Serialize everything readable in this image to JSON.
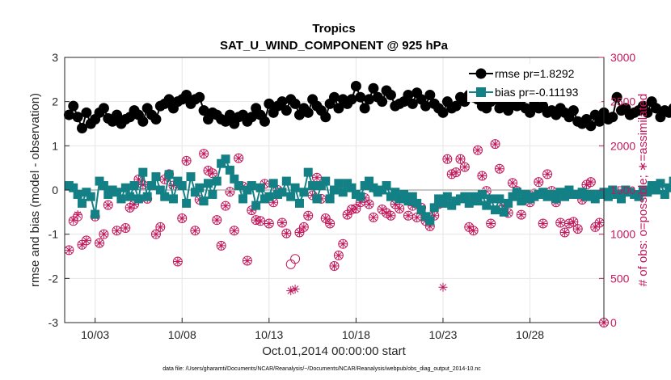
{
  "chart_data": {
    "type": "line",
    "title": "Tropics",
    "subtitle": "SAT_U_WIND_COMPONENT @ 925 hPa",
    "xlabel": "Oct.01,2014 00:00:00 start",
    "ylabel_left": "rmse and bias (model - observation)",
    "ylabel_right": "# of obs: o=possible; ∗=assimilated",
    "footnote": "data file: /Users/gharamti/Documents/NCAR/Reanalysis/~/Documents/NCAR/Reanalysis/webpub/obs_diag_output_2014-10.nc",
    "xlim": [
      1.25,
      32.25
    ],
    "ylim_left": [
      -3,
      3
    ],
    "ylim_right": [
      0,
      3000
    ],
    "x_ticks": [
      3,
      8,
      13,
      18,
      23,
      28
    ],
    "x_tick_labels": [
      "10/03",
      "10/08",
      "10/13",
      "10/18",
      "10/23",
      "10/28"
    ],
    "y_ticks_left": [
      -3,
      -2,
      -1,
      0,
      1,
      2,
      3
    ],
    "y_ticks_right": [
      0,
      500,
      1000,
      1500,
      2000,
      2500,
      3000
    ],
    "x_start": 1.5,
    "x_step": 0.25,
    "colors": {
      "rmse": "#000000",
      "bias": "#138086",
      "obs": "#c2185b",
      "zero_line": "#b3b3b3"
    },
    "legend": {
      "location": "top-right",
      "rmse_label": "rmse pr=1.8292",
      "bias_label": "bias pr=-0.11193"
    },
    "series": [
      {
        "name": "rmse pr=1.8292",
        "values": [
          1.7,
          1.9,
          1.65,
          1.4,
          1.75,
          1.5,
          1.6,
          1.75,
          1.85,
          1.62,
          1.55,
          1.7,
          1.5,
          1.6,
          1.65,
          1.8,
          1.7,
          1.55,
          1.85,
          1.7,
          1.6,
          1.9,
          1.95,
          2.05,
          1.85,
          2,
          2.05,
          2.15,
          1.95,
          2.05,
          2.1,
          1.8,
          1.6,
          1.75,
          1.7,
          1.6,
          1.55,
          1.7,
          1.5,
          1.65,
          1.7,
          1.55,
          1.65,
          1.85,
          1.7,
          1.55,
          1.95,
          1.75,
          1.9,
          2.0,
          1.8,
          2.05,
          1.95,
          1.7,
          1.85,
          1.75,
          2.05,
          1.9,
          1.8,
          1.65,
          1.95,
          2.1,
          1.85,
          2.05,
          1.95,
          2.05,
          2.35,
          2.1,
          1.85,
          2.05,
          2.3,
          2.1,
          2.0,
          2.25,
          2.15,
          1.9,
          1.95,
          2.0,
          2.15,
          1.95,
          2.2,
          2.05,
          1.9,
          2.15,
          1.95,
          1.85,
          1.75,
          2.0,
          1.85,
          1.9,
          2.1,
          2.0,
          2.15,
          2.1,
          2.05,
          1.9,
          1.85,
          2.0,
          2.05,
          1.85,
          1.95,
          1.8,
          2.0,
          1.9,
          2.05,
          1.85,
          1.75,
          1.95,
          1.85,
          1.9,
          1.75,
          1.8,
          1.7,
          1.85,
          1.75,
          1.65,
          1.8,
          1.55,
          1.5,
          1.6,
          1.45,
          1.7,
          1.55,
          1.75,
          1.6,
          1.65,
          2.1,
          1.8,
          1.85,
          1.7,
          1.75,
          1.8,
          1.9,
          1.75,
          2.0,
          1.85,
          1.65,
          1.8,
          1.75,
          1.85,
          1.8,
          1.55,
          1.75,
          1.9,
          2.0,
          1.8,
          2.1,
          1.85,
          2.05,
          1.9,
          2.15,
          2.0,
          2.25,
          2.1,
          2.0,
          2.3,
          2.1,
          2.2,
          2.0,
          1.95,
          1.75,
          1.9,
          1.8
        ]
      },
      {
        "name": "bias pr=-0.11193",
        "values": [
          0.1,
          0.05,
          -0.1,
          -0.3,
          -0.05,
          -0.15,
          -0.55,
          0.2,
          0.1,
          -0.1,
          0,
          -0.05,
          -0.2,
          0.05,
          -0.15,
          0.1,
          -0.2,
          0.4,
          -0.15,
          0.1,
          0.3,
          0,
          -0.15,
          0.35,
          -0.2,
          0.2,
          0.1,
          -0.3,
          0.3,
          -0.05,
          0.05,
          -0.25,
          0.15,
          -0.1,
          0.2,
          0.6,
          0.7,
          0.45,
          0.25,
          0.1,
          -0.2,
          0,
          0.1,
          -0.35,
          0.05,
          -0.2,
          -0.15,
          0.15,
          -0.1,
          -0.05,
          0.2,
          -0.15,
          0.05,
          -0.3,
          -0.05,
          0.4,
          0.1,
          -0.2,
          0.1,
          0.2,
          -0.2,
          0,
          0.15,
          -0.05,
          0.15,
          0.05,
          -0.1,
          -0.15,
          0.1,
          0.2,
          0.05,
          -0.05,
          0,
          0.1,
          -0.15,
          -0.05,
          -0.2,
          -0.1,
          -0.25,
          -0.15,
          -0.3,
          -0.45,
          -0.6,
          -0.7,
          -0.4,
          -0.2,
          -0.3,
          -0.15,
          -0.35,
          -0.25,
          -0.2,
          -0.15,
          -0.3,
          -0.15,
          -0.25,
          -0.1,
          -0.35,
          -0.2,
          -0.45,
          -0.2,
          -0.5,
          -0.3,
          -0.15,
          -0.05,
          -0.25,
          -0.1,
          -0.2,
          -0.15,
          -0.1,
          -0.05,
          -0.15,
          -0.1,
          -0.2,
          -0.05,
          -0.15,
          0,
          -0.1,
          -0.1,
          -0.05,
          -0.15,
          -0.1,
          -0.2,
          -0.1,
          -0.05,
          -0.15,
          0,
          -0.1,
          -0.2,
          0,
          -0.05,
          -0.1,
          -0.15,
          0,
          -0.05,
          0.1,
          0,
          0.15,
          -0.1,
          0.05,
          0.2,
          0.1,
          -0.05,
          0.15,
          -0.1,
          -0.35,
          0.1,
          -0.2,
          0.05,
          0.2,
          -0.1,
          0.15,
          -0.05,
          0.1,
          -0.25,
          0.35,
          -0.1,
          0.2,
          0.05,
          0.45,
          0.1,
          0.2,
          -0.05,
          -0.15,
          -0.2
        ]
      }
    ],
    "obs_possible": [
      [
        1.5,
        820
      ],
      [
        1.75,
        1150
      ],
      [
        2,
        1200
      ],
      [
        2.25,
        880
      ],
      [
        2.5,
        930
      ],
      [
        3,
        1200
      ],
      [
        3.25,
        900
      ],
      [
        3.5,
        1000
      ],
      [
        3.75,
        1330
      ],
      [
        4.25,
        1040
      ],
      [
        4.75,
        1070
      ],
      [
        5,
        1300
      ],
      [
        5.25,
        1340
      ],
      [
        5.5,
        1620
      ],
      [
        5.75,
        1560
      ],
      [
        6,
        1400
      ],
      [
        6.5,
        1000
      ],
      [
        6.75,
        1080
      ],
      [
        7,
        1620
      ],
      [
        7.25,
        1680
      ],
      [
        7.5,
        1550
      ],
      [
        7.75,
        690
      ],
      [
        8,
        1180
      ],
      [
        8.25,
        1830
      ],
      [
        8.75,
        1040
      ],
      [
        9,
        1390
      ],
      [
        9.25,
        1910
      ],
      [
        9.5,
        1720
      ],
      [
        9.75,
        1690
      ],
      [
        10,
        1160
      ],
      [
        10.25,
        870
      ],
      [
        10.5,
        1320
      ],
      [
        10.75,
        1480
      ],
      [
        11,
        1040
      ],
      [
        11.25,
        1860
      ],
      [
        11.5,
        1540
      ],
      [
        11.75,
        700
      ],
      [
        12,
        1270
      ],
      [
        12.25,
        1160
      ],
      [
        12.5,
        1150
      ],
      [
        12.75,
        1570
      ],
      [
        13,
        1120
      ],
      [
        13.25,
        1360
      ],
      [
        13.5,
        1500
      ],
      [
        13.75,
        1130
      ],
      [
        14,
        1010
      ],
      [
        14.25,
        660
      ],
      [
        14.5,
        720
      ],
      [
        14.75,
        1020
      ],
      [
        15,
        1080
      ],
      [
        15.25,
        1210
      ],
      [
        15.5,
        1440
      ],
      [
        15.75,
        1640
      ],
      [
        16,
        1400
      ],
      [
        16.25,
        1180
      ],
      [
        16.5,
        1120
      ],
      [
        16.75,
        640
      ],
      [
        17,
        760
      ],
      [
        17.25,
        890
      ],
      [
        17.5,
        1220
      ],
      [
        17.75,
        1280
      ],
      [
        18,
        1290
      ],
      [
        18.25,
        1360
      ],
      [
        18.5,
        1410
      ],
      [
        18.75,
        1340
      ],
      [
        19,
        1190
      ],
      [
        19.25,
        1480
      ],
      [
        19.5,
        1280
      ],
      [
        19.75,
        1240
      ],
      [
        20,
        1210
      ],
      [
        20.25,
        1340
      ],
      [
        20.5,
        1290
      ],
      [
        20.75,
        1410
      ],
      [
        21,
        1210
      ],
      [
        21.25,
        1320
      ],
      [
        21.5,
        1190
      ],
      [
        21.75,
        1300
      ],
      [
        22,
        1150
      ],
      [
        22.25,
        1090
      ],
      [
        22.5,
        1210
      ],
      [
        22.75,
        1340
      ],
      [
        23,
        1360
      ],
      [
        23.25,
        1850
      ],
      [
        23.5,
        1680
      ],
      [
        23.75,
        1700
      ],
      [
        24,
        1850
      ],
      [
        24.25,
        1760
      ],
      [
        24.5,
        1080
      ],
      [
        24.75,
        1040
      ],
      [
        25,
        1950
      ],
      [
        25.25,
        1660
      ],
      [
        25.5,
        1490
      ],
      [
        25.75,
        1120
      ],
      [
        26,
        2020
      ],
      [
        26.25,
        1740
      ],
      [
        26.5,
        1320
      ],
      [
        26.75,
        1240
      ],
      [
        27,
        1580
      ],
      [
        27.25,
        1490
      ],
      [
        27.5,
        1220
      ],
      [
        27.75,
        1400
      ],
      [
        28,
        1360
      ],
      [
        28.25,
        1460
      ],
      [
        28.5,
        1590
      ],
      [
        28.75,
        1120
      ],
      [
        29,
        1680
      ],
      [
        29.25,
        1490
      ],
      [
        29.5,
        1360
      ],
      [
        29.75,
        1130
      ],
      [
        30,
        1020
      ],
      [
        30.25,
        1120
      ],
      [
        30.5,
        1140
      ],
      [
        30.75,
        1060
      ],
      [
        31,
        1390
      ],
      [
        31.25,
        1560
      ],
      [
        31.5,
        1590
      ],
      [
        31.75,
        1080
      ],
      [
        32,
        1130
      ],
      [
        32.25,
        0
      ]
    ],
    "obs_assimilated": [
      [
        1.5,
        820
      ],
      [
        1.75,
        1160
      ],
      [
        2,
        1220
      ],
      [
        2.25,
        880
      ],
      [
        2.5,
        930
      ],
      [
        3,
        1200
      ],
      [
        3.25,
        900
      ],
      [
        3.5,
        1000
      ],
      [
        3.75,
        1330
      ],
      [
        4.25,
        1040
      ],
      [
        4.75,
        1070
      ],
      [
        5,
        1300
      ],
      [
        5.25,
        1340
      ],
      [
        5.5,
        1620
      ],
      [
        5.75,
        1560
      ],
      [
        6,
        1400
      ],
      [
        6.5,
        1000
      ],
      [
        6.75,
        1080
      ],
      [
        7,
        1620
      ],
      [
        7.25,
        1680
      ],
      [
        7.5,
        1550
      ],
      [
        7.75,
        690
      ],
      [
        8,
        1180
      ],
      [
        8.25,
        1830
      ],
      [
        8.75,
        1040
      ],
      [
        9,
        1390
      ],
      [
        9.25,
        1910
      ],
      [
        9.5,
        1720
      ],
      [
        9.75,
        1690
      ],
      [
        10,
        1160
      ],
      [
        10.25,
        870
      ],
      [
        10.5,
        1320
      ],
      [
        10.75,
        1480
      ],
      [
        11,
        1040
      ],
      [
        11.25,
        1860
      ],
      [
        11.5,
        1540
      ],
      [
        11.75,
        700
      ],
      [
        12,
        1270
      ],
      [
        12.25,
        1160
      ],
      [
        12.5,
        1150
      ],
      [
        12.75,
        1570
      ],
      [
        13,
        1120
      ],
      [
        13.25,
        1360
      ],
      [
        13.5,
        1500
      ],
      [
        13.75,
        1130
      ],
      [
        14,
        1010
      ],
      [
        14.25,
        360
      ],
      [
        14.5,
        380
      ],
      [
        14.75,
        1020
      ],
      [
        15,
        1080
      ],
      [
        15.25,
        1210
      ],
      [
        15.5,
        1440
      ],
      [
        15.75,
        1640
      ],
      [
        16,
        1400
      ],
      [
        16.25,
        1180
      ],
      [
        16.5,
        1120
      ],
      [
        16.75,
        640
      ],
      [
        17,
        760
      ],
      [
        17.25,
        890
      ],
      [
        17.5,
        1220
      ],
      [
        17.75,
        1280
      ],
      [
        18,
        1290
      ],
      [
        18.25,
        1360
      ],
      [
        18.5,
        1410
      ],
      [
        18.75,
        1340
      ],
      [
        19,
        1190
      ],
      [
        19.25,
        1480
      ],
      [
        19.5,
        1280
      ],
      [
        19.75,
        1240
      ],
      [
        20,
        1210
      ],
      [
        20.25,
        1340
      ],
      [
        20.5,
        1290
      ],
      [
        20.75,
        1410
      ],
      [
        21,
        1210
      ],
      [
        21.25,
        1320
      ],
      [
        21.5,
        1190
      ],
      [
        21.75,
        1300
      ],
      [
        22,
        1150
      ],
      [
        22.25,
        1090
      ],
      [
        22.5,
        1210
      ],
      [
        22.75,
        1340
      ],
      [
        23,
        400
      ],
      [
        23.25,
        1850
      ],
      [
        23.5,
        1680
      ],
      [
        23.75,
        1700
      ],
      [
        24,
        1850
      ],
      [
        24.25,
        1760
      ],
      [
        24.5,
        1080
      ],
      [
        24.75,
        1040
      ],
      [
        25,
        1950
      ],
      [
        25.25,
        1660
      ],
      [
        25.5,
        1490
      ],
      [
        25.75,
        1120
      ],
      [
        26,
        2020
      ],
      [
        26.25,
        1740
      ],
      [
        26.5,
        1320
      ],
      [
        26.75,
        1240
      ],
      [
        27,
        1580
      ],
      [
        27.25,
        1490
      ],
      [
        27.5,
        1220
      ],
      [
        27.75,
        1400
      ],
      [
        28,
        1360
      ],
      [
        28.25,
        1460
      ],
      [
        28.5,
        1590
      ],
      [
        28.75,
        1120
      ],
      [
        29,
        1680
      ],
      [
        29.25,
        1490
      ],
      [
        29.5,
        1360
      ],
      [
        29.75,
        1130
      ],
      [
        30,
        1020
      ],
      [
        30.25,
        1120
      ],
      [
        30.5,
        1140
      ],
      [
        30.75,
        1060
      ],
      [
        31,
        1390
      ],
      [
        31.25,
        1560
      ],
      [
        31.5,
        1590
      ],
      [
        31.75,
        1080
      ],
      [
        32,
        1130
      ],
      [
        32.25,
        0
      ]
    ]
  }
}
